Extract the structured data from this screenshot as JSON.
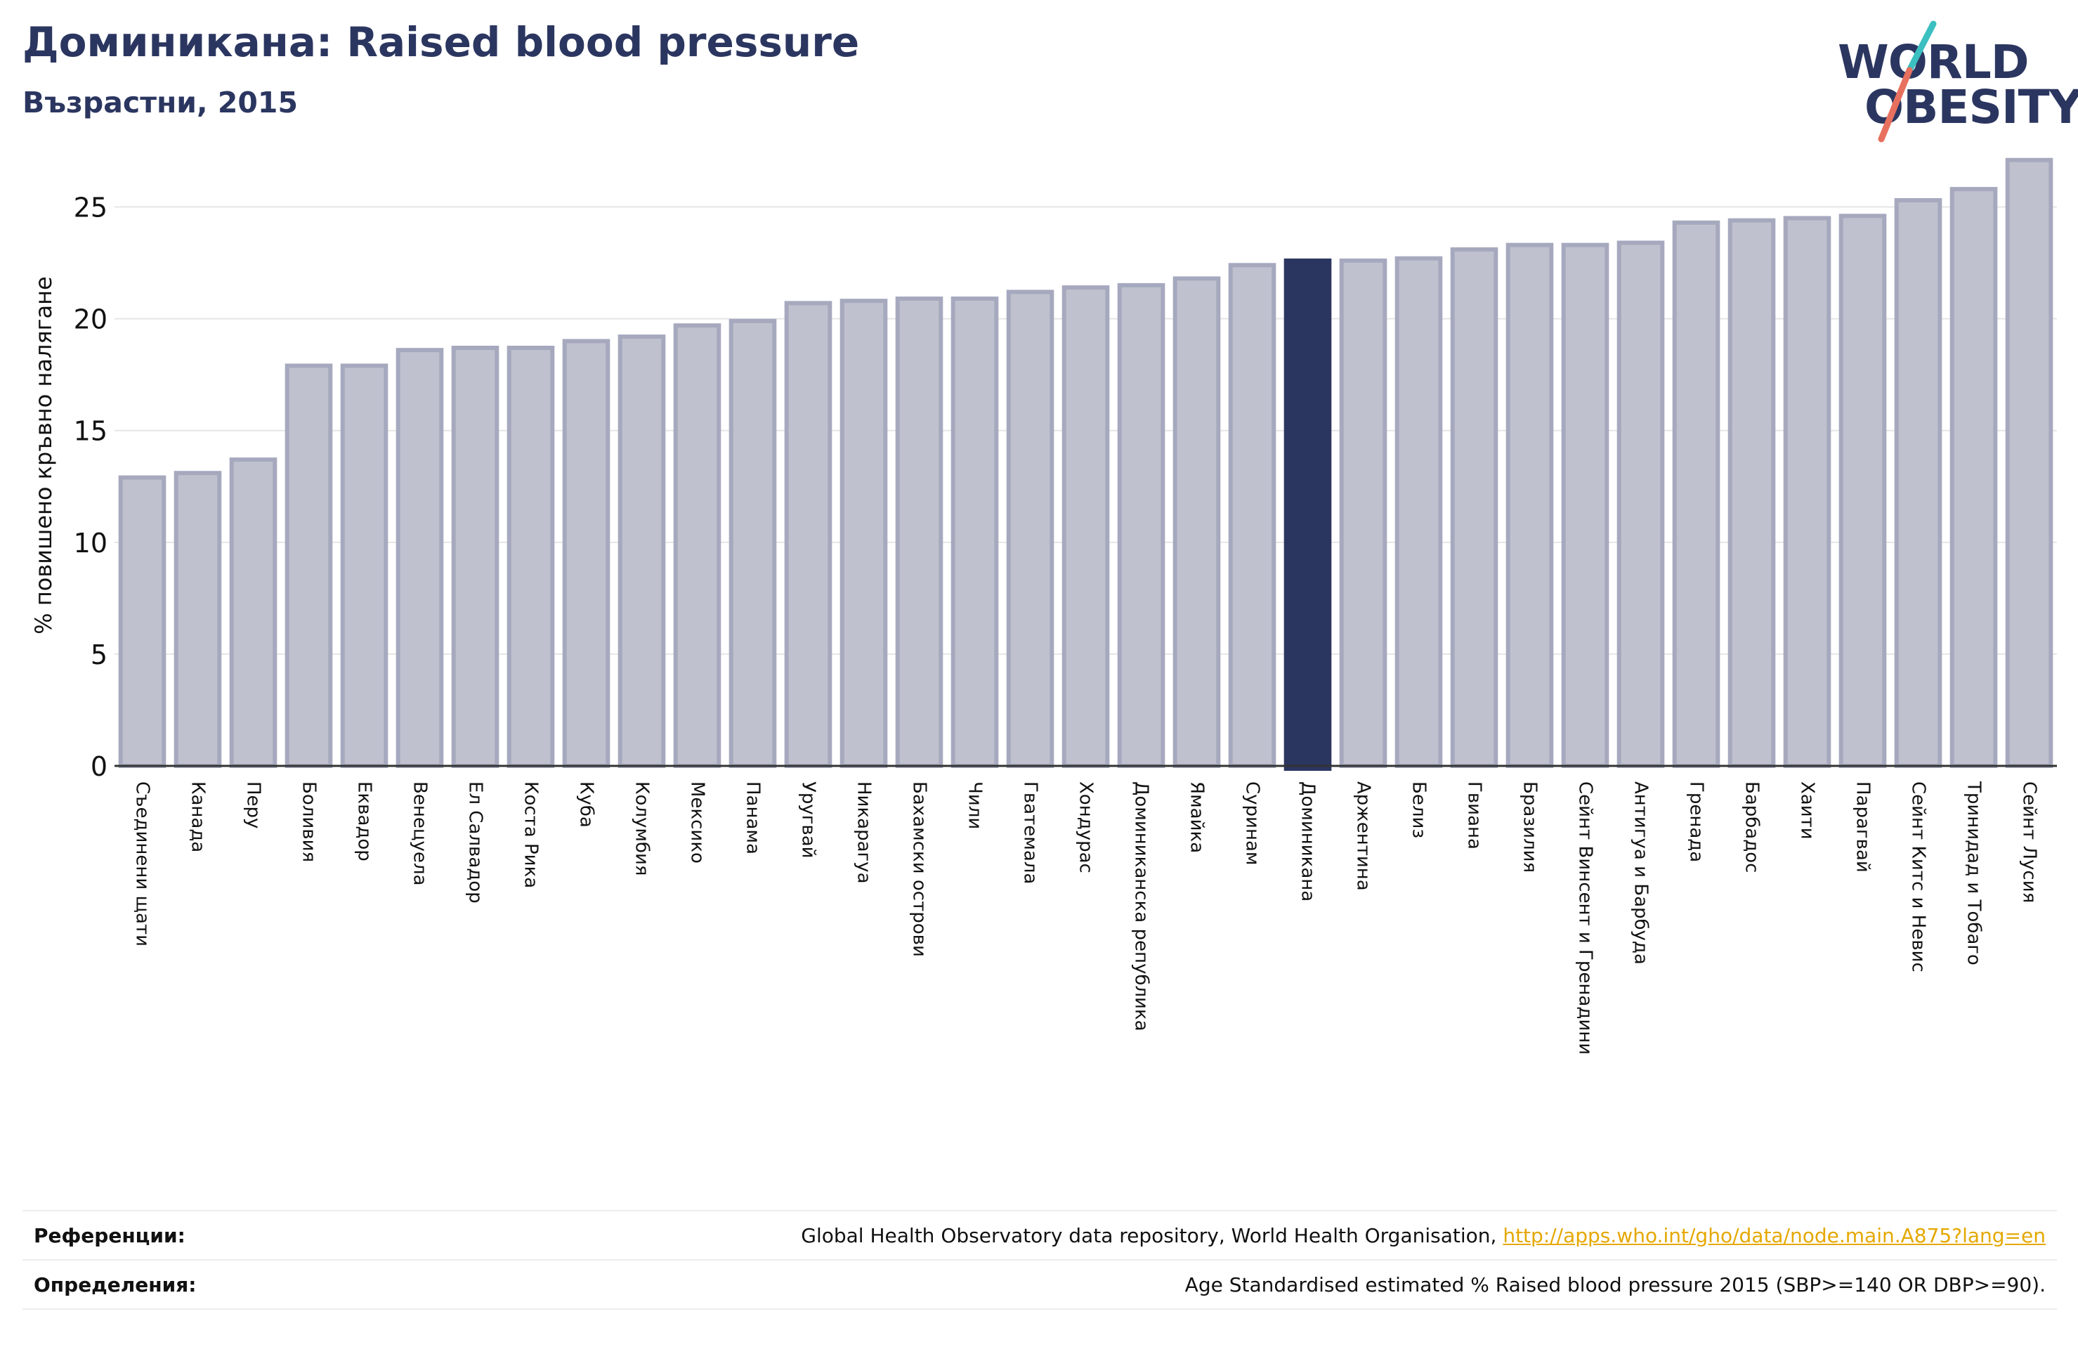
{
  "header": {
    "title": "Доминикана: Raised blood pressure",
    "subtitle": "Възрастни, 2015"
  },
  "logo": {
    "line1": "WORLD",
    "line2": "OBESITY",
    "colors": {
      "text": "#2b3660",
      "slash_top": "#3bbfc1",
      "slash_bottom": "#e8705e"
    }
  },
  "chart_data": {
    "type": "bar",
    "title": "",
    "xlabel": "",
    "ylabel": "% повишено кръвно налягане",
    "ylim": [
      0,
      27.5
    ],
    "yticks": [
      0,
      5,
      10,
      15,
      20,
      25
    ],
    "grid": true,
    "highlight": "Доминикана",
    "colors": {
      "bar": "#bfc1ce",
      "bar_edge": "#a6a9be",
      "highlight": "#2b3660",
      "grid": "#e6e6e6",
      "axis": "#333333"
    },
    "categories": [
      "Съединени щати",
      "Канада",
      "Перу",
      "Боливия",
      "Еквадор",
      "Венецуела",
      "Ел Салвадор",
      "Коста Рика",
      "Куба",
      "Колумбия",
      "Мексико",
      "Панама",
      "Уругвай",
      "Никарагуа",
      "Бахамски острови",
      "Чили",
      "Гватемала",
      "Хондурас",
      "Доминиканска република",
      "Ямайка",
      "Суринам",
      "Доминикана",
      "Аржентина",
      "Белиз",
      "Гвиана",
      "Бразилия",
      "Сейнт Винсент и Гренадини",
      "Антигуа и Барбуда",
      "Гренада",
      "Барбадос",
      "Хаити",
      "Парагвай",
      "Сейнт Китс и Невис",
      "Тринидад и Тобаго",
      "Сейнт Лусия"
    ],
    "values": [
      12.9,
      13.1,
      13.7,
      17.9,
      17.9,
      18.6,
      18.7,
      18.7,
      19.0,
      19.2,
      19.7,
      19.9,
      20.7,
      20.8,
      20.9,
      20.9,
      21.2,
      21.4,
      21.5,
      21.8,
      22.4,
      22.6,
      22.6,
      22.7,
      23.1,
      23.3,
      23.3,
      23.4,
      24.3,
      24.4,
      24.5,
      24.6,
      25.3,
      25.8,
      27.1
    ]
  },
  "footer": {
    "references_label": "Референции:",
    "references_text": "Global Health Observatory data repository, World Health Organisation, ",
    "references_link": "http://apps.who.int/gho/data/node.main.A875?lang=en",
    "definitions_label": "Определения:",
    "definitions_text": "Age Standardised estimated % Raised blood pressure 2015 (SBP>=140 OR DBP>=90)."
  }
}
